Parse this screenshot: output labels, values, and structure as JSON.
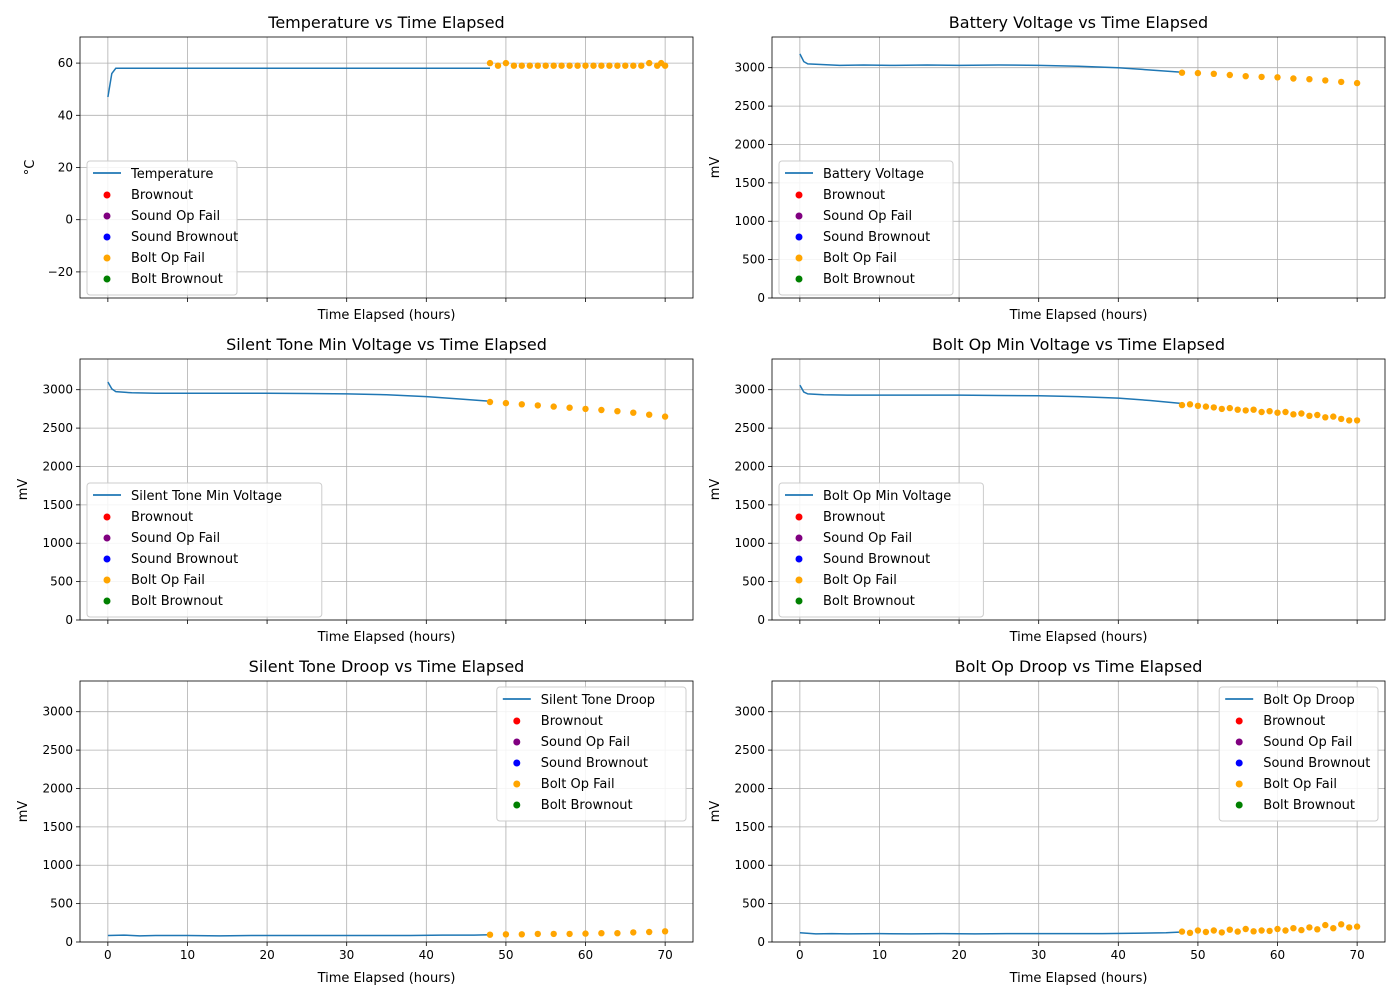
{
  "legend_labels": {
    "brownout": "Brownout",
    "sound_op_fail": "Sound Op Fail",
    "sound_brownout": "Sound Brownout",
    "bolt_op_fail": "Bolt Op Fail",
    "bolt_brownout": "Bolt Brownout"
  },
  "colors": {
    "line": "#1f77b4",
    "brownout": "#ff0000",
    "sound_op_fail": "#800080",
    "sound_brownout": "#0000ff",
    "bolt_op_fail": "#ffa500",
    "bolt_brownout": "#008000",
    "grid": "#b0b0b0"
  },
  "chart_data": [
    {
      "type": "line",
      "title": "Temperature vs Time Elapsed",
      "xlabel": "Time Elapsed (hours)",
      "ylabel": "°C",
      "xlim": [
        -3.5,
        73.5
      ],
      "ylim": [
        -30,
        70
      ],
      "xticks": [
        0,
        10,
        20,
        30,
        40,
        50,
        60,
        70
      ],
      "yticks": [
        -20,
        0,
        20,
        40,
        60
      ],
      "ytick_labels": [
        "−20",
        "0",
        "20",
        "40",
        "60"
      ],
      "show_xtick_labels": false,
      "legend_position": "center-left",
      "series_name": "Temperature",
      "line": [
        [
          0,
          47
        ],
        [
          0.5,
          56
        ],
        [
          1,
          58
        ],
        [
          48,
          58
        ]
      ],
      "bolt_op_fail": [
        [
          48,
          60
        ],
        [
          49,
          59
        ],
        [
          50,
          60
        ],
        [
          51,
          59
        ],
        [
          52,
          59
        ],
        [
          53,
          59
        ],
        [
          54,
          59
        ],
        [
          55,
          59
        ],
        [
          56,
          59
        ],
        [
          57,
          59
        ],
        [
          58,
          59
        ],
        [
          59,
          59
        ],
        [
          60,
          59
        ],
        [
          61,
          59
        ],
        [
          62,
          59
        ],
        [
          63,
          59
        ],
        [
          64,
          59
        ],
        [
          65,
          59
        ],
        [
          66,
          59
        ],
        [
          67,
          59
        ],
        [
          68,
          60
        ],
        [
          69,
          59
        ],
        [
          69.5,
          60
        ],
        [
          70,
          59
        ]
      ]
    },
    {
      "type": "line",
      "title": "Battery Voltage vs Time Elapsed",
      "xlabel": "Time Elapsed (hours)",
      "ylabel": "mV",
      "xlim": [
        -3.5,
        73.5
      ],
      "ylim": [
        0,
        3400
      ],
      "xticks": [
        0,
        10,
        20,
        30,
        40,
        50,
        60,
        70
      ],
      "yticks": [
        0,
        500,
        1000,
        1500,
        2000,
        2500,
        3000
      ],
      "show_xtick_labels": false,
      "legend_position": "center-left",
      "series_name": "Battery Voltage",
      "line": [
        [
          0,
          3180
        ],
        [
          0.5,
          3080
        ],
        [
          1,
          3050
        ],
        [
          3,
          3040
        ],
        [
          5,
          3030
        ],
        [
          8,
          3035
        ],
        [
          12,
          3030
        ],
        [
          16,
          3035
        ],
        [
          20,
          3030
        ],
        [
          25,
          3035
        ],
        [
          30,
          3030
        ],
        [
          35,
          3020
        ],
        [
          40,
          3000
        ],
        [
          44,
          2970
        ],
        [
          48,
          2940
        ]
      ],
      "bolt_op_fail": [
        [
          48,
          2935
        ],
        [
          50,
          2930
        ],
        [
          52,
          2920
        ],
        [
          54,
          2905
        ],
        [
          56,
          2890
        ],
        [
          58,
          2880
        ],
        [
          60,
          2875
        ],
        [
          62,
          2860
        ],
        [
          64,
          2850
        ],
        [
          66,
          2835
        ],
        [
          68,
          2815
        ],
        [
          70,
          2800
        ]
      ]
    },
    {
      "type": "line",
      "title": "Silent Tone Min Voltage vs Time Elapsed",
      "xlabel": "Time Elapsed (hours)",
      "ylabel": "mV",
      "xlim": [
        -3.5,
        73.5
      ],
      "ylim": [
        0,
        3400
      ],
      "xticks": [
        0,
        10,
        20,
        30,
        40,
        50,
        60,
        70
      ],
      "yticks": [
        0,
        500,
        1000,
        1500,
        2000,
        2500,
        3000
      ],
      "show_xtick_labels": false,
      "legend_position": "center-left",
      "series_name": "Silent Tone Min Voltage",
      "line": [
        [
          0,
          3100
        ],
        [
          0.5,
          3010
        ],
        [
          1,
          2975
        ],
        [
          3,
          2960
        ],
        [
          6,
          2955
        ],
        [
          10,
          2955
        ],
        [
          15,
          2955
        ],
        [
          20,
          2955
        ],
        [
          25,
          2950
        ],
        [
          30,
          2945
        ],
        [
          35,
          2935
        ],
        [
          40,
          2910
        ],
        [
          44,
          2880
        ],
        [
          48,
          2850
        ]
      ],
      "bolt_op_fail": [
        [
          48,
          2840
        ],
        [
          50,
          2825
        ],
        [
          52,
          2810
        ],
        [
          54,
          2795
        ],
        [
          56,
          2780
        ],
        [
          58,
          2765
        ],
        [
          60,
          2750
        ],
        [
          62,
          2735
        ],
        [
          64,
          2720
        ],
        [
          66,
          2700
        ],
        [
          68,
          2675
        ],
        [
          70,
          2650
        ]
      ]
    },
    {
      "type": "line",
      "title": "Bolt Op Min Voltage vs Time Elapsed",
      "xlabel": "Time Elapsed (hours)",
      "ylabel": "mV",
      "xlim": [
        -3.5,
        73.5
      ],
      "ylim": [
        0,
        3400
      ],
      "xticks": [
        0,
        10,
        20,
        30,
        40,
        50,
        60,
        70
      ],
      "yticks": [
        0,
        500,
        1000,
        1500,
        2000,
        2500,
        3000
      ],
      "show_xtick_labels": false,
      "legend_position": "center-left",
      "series_name": "Bolt Op Min Voltage",
      "line": [
        [
          0,
          3060
        ],
        [
          0.5,
          2970
        ],
        [
          1,
          2945
        ],
        [
          3,
          2935
        ],
        [
          6,
          2930
        ],
        [
          10,
          2930
        ],
        [
          15,
          2930
        ],
        [
          20,
          2930
        ],
        [
          25,
          2925
        ],
        [
          30,
          2920
        ],
        [
          35,
          2910
        ],
        [
          40,
          2890
        ],
        [
          44,
          2860
        ],
        [
          48,
          2820
        ]
      ],
      "bolt_op_fail": [
        [
          48,
          2800
        ],
        [
          49,
          2810
        ],
        [
          50,
          2790
        ],
        [
          51,
          2780
        ],
        [
          52,
          2770
        ],
        [
          53,
          2750
        ],
        [
          54,
          2760
        ],
        [
          55,
          2740
        ],
        [
          56,
          2730
        ],
        [
          57,
          2740
        ],
        [
          58,
          2710
        ],
        [
          59,
          2720
        ],
        [
          60,
          2700
        ],
        [
          61,
          2710
        ],
        [
          62,
          2680
        ],
        [
          63,
          2690
        ],
        [
          64,
          2660
        ],
        [
          65,
          2670
        ],
        [
          66,
          2640
        ],
        [
          67,
          2650
        ],
        [
          68,
          2620
        ],
        [
          69,
          2600
        ],
        [
          70,
          2600
        ]
      ]
    },
    {
      "type": "line",
      "title": "Silent Tone Droop vs Time Elapsed",
      "xlabel": "Time Elapsed (hours)",
      "ylabel": "mV",
      "xlim": [
        -3.5,
        73.5
      ],
      "ylim": [
        0,
        3400
      ],
      "xticks": [
        0,
        10,
        20,
        30,
        40,
        50,
        60,
        70
      ],
      "yticks": [
        0,
        500,
        1000,
        1500,
        2000,
        2500,
        3000
      ],
      "show_xtick_labels": true,
      "legend_position": "top-right",
      "series_name": "Silent Tone Droop",
      "line": [
        [
          0,
          85
        ],
        [
          2,
          90
        ],
        [
          4,
          80
        ],
        [
          6,
          85
        ],
        [
          10,
          85
        ],
        [
          14,
          80
        ],
        [
          18,
          85
        ],
        [
          22,
          85
        ],
        [
          26,
          85
        ],
        [
          30,
          85
        ],
        [
          34,
          85
        ],
        [
          38,
          85
        ],
        [
          42,
          90
        ],
        [
          46,
          90
        ],
        [
          48,
          95
        ]
      ],
      "bolt_op_fail": [
        [
          48,
          95
        ],
        [
          50,
          100
        ],
        [
          52,
          100
        ],
        [
          54,
          105
        ],
        [
          56,
          105
        ],
        [
          58,
          105
        ],
        [
          60,
          110
        ],
        [
          62,
          115
        ],
        [
          64,
          115
        ],
        [
          66,
          125
        ],
        [
          68,
          130
        ],
        [
          70,
          140
        ]
      ]
    },
    {
      "type": "line",
      "title": "Bolt Op Droop vs Time Elapsed",
      "xlabel": "Time Elapsed (hours)",
      "ylabel": "mV",
      "xlim": [
        -3.5,
        73.5
      ],
      "ylim": [
        0,
        3400
      ],
      "xticks": [
        0,
        10,
        20,
        30,
        40,
        50,
        60,
        70
      ],
      "yticks": [
        0,
        500,
        1000,
        1500,
        2000,
        2500,
        3000
      ],
      "show_xtick_labels": true,
      "legend_position": "top-right",
      "series_name": "Bolt Op Droop",
      "line": [
        [
          0,
          120
        ],
        [
          2,
          105
        ],
        [
          4,
          110
        ],
        [
          6,
          105
        ],
        [
          10,
          110
        ],
        [
          14,
          105
        ],
        [
          18,
          110
        ],
        [
          22,
          105
        ],
        [
          26,
          110
        ],
        [
          30,
          110
        ],
        [
          34,
          110
        ],
        [
          38,
          110
        ],
        [
          42,
          115
        ],
        [
          46,
          120
        ],
        [
          48,
          130
        ]
      ],
      "bolt_op_fail": [
        [
          48,
          135
        ],
        [
          49,
          120
        ],
        [
          50,
          150
        ],
        [
          51,
          130
        ],
        [
          52,
          150
        ],
        [
          53,
          125
        ],
        [
          54,
          160
        ],
        [
          55,
          135
        ],
        [
          56,
          170
        ],
        [
          57,
          140
        ],
        [
          58,
          150
        ],
        [
          59,
          145
        ],
        [
          60,
          170
        ],
        [
          61,
          150
        ],
        [
          62,
          180
        ],
        [
          63,
          155
        ],
        [
          64,
          190
        ],
        [
          65,
          165
        ],
        [
          66,
          220
        ],
        [
          67,
          180
        ],
        [
          68,
          230
        ],
        [
          69,
          190
        ],
        [
          70,
          200
        ]
      ]
    }
  ]
}
